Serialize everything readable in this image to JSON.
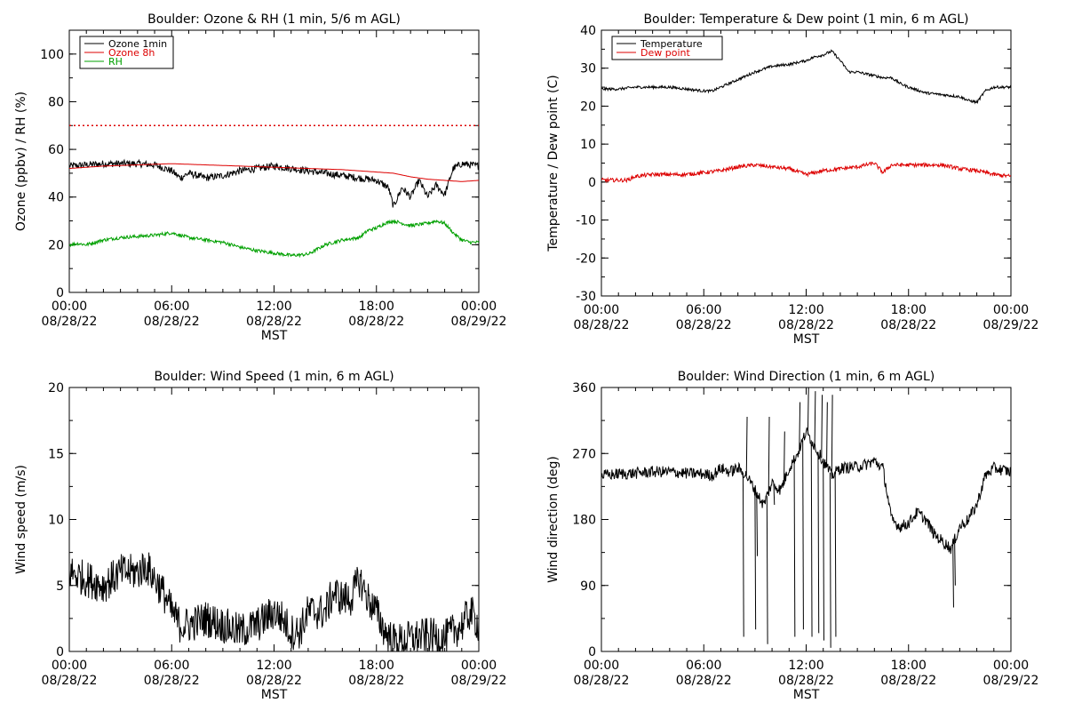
{
  "colors": {
    "black": "#000000",
    "red": "#dd0000",
    "green": "#00a000"
  },
  "chart_data": [
    {
      "id": "ozone",
      "type": "line",
      "title": "Boulder: Ozone & RH (1 min, 5/6 m AGL)",
      "xlabel": "MST",
      "ylabel": "Ozone (ppbv) / RH (%)",
      "x_ticks": [
        {
          "h": 0,
          "time": "00:00",
          "date": "08/28/22"
        },
        {
          "h": 6,
          "time": "06:00",
          "date": "08/28/22"
        },
        {
          "h": 12,
          "time": "12:00",
          "date": "08/28/22"
        },
        {
          "h": 18,
          "time": "18:00",
          "date": "08/28/22"
        },
        {
          "h": 24,
          "time": "00:00",
          "date": "08/29/22"
        }
      ],
      "xlim": [
        0,
        24
      ],
      "ylim": [
        0,
        110
      ],
      "y_ticks": [
        0,
        20,
        40,
        60,
        80,
        100
      ],
      "hline": {
        "y": 70,
        "color": "#dd0000",
        "style": "dotted"
      },
      "legend": {
        "position": "top-left",
        "entries": [
          {
            "label": "Ozone 1min",
            "color": "#000000"
          },
          {
            "label": "Ozone 8h",
            "color": "#dd0000"
          },
          {
            "label": "RH",
            "color": "#00a000"
          }
        ]
      },
      "series": [
        {
          "name": "Ozone 1min",
          "color": "#000000",
          "noise": 1.5,
          "x": [
            0,
            1,
            2,
            3,
            4,
            5,
            6,
            6.5,
            7,
            8,
            9,
            10,
            11,
            12,
            13,
            14,
            15,
            16,
            17,
            18,
            18.7,
            19,
            19.5,
            20,
            20.5,
            21,
            21.5,
            22,
            22.5,
            23,
            24
          ],
          "y": [
            53,
            53.5,
            54,
            54,
            54,
            53.5,
            51,
            48,
            50,
            48,
            49,
            51,
            52,
            53,
            52,
            51,
            50,
            49,
            48,
            47,
            44,
            36,
            44,
            40,
            47,
            40,
            45,
            41,
            52,
            54,
            53
          ]
        },
        {
          "name": "Ozone 8h",
          "color": "#dd0000",
          "noise": 0,
          "x": [
            0,
            2,
            4,
            6,
            8,
            10,
            12,
            14,
            16,
            18,
            19,
            20,
            21,
            22,
            23,
            24
          ],
          "y": [
            52,
            53,
            53.5,
            54,
            53.5,
            53,
            52.5,
            52,
            51.5,
            50.5,
            50,
            48.5,
            47.5,
            47,
            46.5,
            47
          ]
        },
        {
          "name": "RH",
          "color": "#00a000",
          "noise": 0.7,
          "x": [
            0,
            0.5,
            1,
            2,
            3,
            4,
            5,
            5.5,
            6,
            6.5,
            7,
            8,
            9,
            10,
            11,
            12,
            13,
            14,
            15,
            16,
            17,
            17.5,
            18,
            18.5,
            19,
            19.5,
            20,
            21,
            21.5,
            22,
            22.5,
            23,
            23.5,
            24
          ],
          "y": [
            20,
            20.5,
            20,
            22,
            23,
            23.5,
            24,
            24.5,
            25,
            24,
            23,
            22,
            21,
            19,
            17.5,
            16.5,
            15.5,
            16,
            20,
            22,
            23,
            26,
            27,
            29,
            30,
            29,
            28,
            29,
            30,
            29,
            25,
            22,
            21,
            21
          ]
        }
      ]
    },
    {
      "id": "temperature",
      "type": "line",
      "title": "Boulder: Temperature & Dew point (1 min, 6 m AGL)",
      "xlabel": "MST",
      "ylabel": "Temperature / Dew point (C)",
      "x_ticks": [
        {
          "h": 0,
          "time": "00:00",
          "date": "08/28/22"
        },
        {
          "h": 6,
          "time": "06:00",
          "date": "08/28/22"
        },
        {
          "h": 12,
          "time": "12:00",
          "date": "08/28/22"
        },
        {
          "h": 18,
          "time": "18:00",
          "date": "08/28/22"
        },
        {
          "h": 24,
          "time": "00:00",
          "date": "08/29/22"
        }
      ],
      "xlim": [
        0,
        24
      ],
      "ylim": [
        -30,
        40
      ],
      "y_ticks": [
        -30,
        -20,
        -10,
        0,
        10,
        20,
        30,
        40
      ],
      "legend": {
        "position": "top-left",
        "entries": [
          {
            "label": "Temperature",
            "color": "#000000"
          },
          {
            "label": "Dew point",
            "color": "#dd0000"
          }
        ]
      },
      "series": [
        {
          "name": "Temperature",
          "color": "#000000",
          "noise": 0.35,
          "x": [
            0,
            0.5,
            1,
            2,
            3,
            4,
            5,
            6,
            6.5,
            7,
            8,
            9,
            10,
            11,
            12,
            12.5,
            13,
            13.5,
            14,
            14.5,
            15,
            16,
            16.5,
            17,
            17.5,
            18,
            19,
            20,
            21,
            21.5,
            22,
            22.5,
            23,
            24
          ],
          "y": [
            24.5,
            24.5,
            24.5,
            25,
            25,
            25,
            24.5,
            24,
            24,
            25,
            27,
            29,
            30.5,
            31,
            32,
            33,
            33.5,
            34.5,
            32,
            29,
            29,
            28,
            27.5,
            27.5,
            26,
            25,
            23.5,
            23,
            22.5,
            21.5,
            21,
            24,
            25,
            25
          ]
        },
        {
          "name": "Dew point",
          "color": "#dd0000",
          "noise": 0.5,
          "x": [
            0,
            1,
            1.5,
            2,
            3,
            4,
            5,
            6,
            7,
            8,
            9,
            10,
            11,
            12,
            13,
            14,
            15,
            16,
            16.5,
            17,
            18,
            19,
            20,
            21,
            22,
            23,
            24
          ],
          "y": [
            0.5,
            0.5,
            0.5,
            1.5,
            2,
            2,
            2,
            2.5,
            3,
            4,
            4.5,
            4,
            3.5,
            2,
            3,
            3.5,
            4,
            5,
            2.5,
            4.5,
            4.5,
            4.5,
            4.5,
            3.5,
            3,
            2,
            1.5
          ]
        }
      ]
    },
    {
      "id": "wind_speed",
      "type": "line",
      "title": "Boulder: Wind Speed (1 min, 6 m AGL)",
      "xlabel": "MST",
      "ylabel": "Wind speed (m/s)",
      "x_ticks": [
        {
          "h": 0,
          "time": "00:00",
          "date": "08/28/22"
        },
        {
          "h": 6,
          "time": "06:00",
          "date": "08/28/22"
        },
        {
          "h": 12,
          "time": "12:00",
          "date": "08/28/22"
        },
        {
          "h": 18,
          "time": "18:00",
          "date": "08/28/22"
        },
        {
          "h": 24,
          "time": "00:00",
          "date": "08/29/22"
        }
      ],
      "xlim": [
        0,
        24
      ],
      "ylim": [
        0,
        20
      ],
      "y_ticks": [
        0,
        5,
        10,
        15,
        20
      ],
      "series": [
        {
          "name": "",
          "color": "#000000",
          "noise": 1.4,
          "x": [
            0,
            1,
            2,
            3,
            4,
            4.5,
            5,
            5.5,
            6,
            6.5,
            7,
            8,
            9,
            10,
            11,
            12,
            12.5,
            13,
            13.5,
            14,
            15,
            15.5,
            16,
            16.5,
            17,
            17.5,
            18,
            18.5,
            19,
            19.5,
            20,
            21,
            22,
            22.5,
            23,
            23.5,
            24
          ],
          "y": [
            6,
            5.5,
            5,
            6,
            6,
            6.5,
            5.5,
            4.5,
            3,
            2,
            2,
            2.5,
            2,
            1.5,
            2,
            3,
            2.5,
            1.5,
            1.5,
            3,
            3,
            4.5,
            4,
            4,
            5.5,
            4,
            3,
            1.5,
            0.8,
            0.8,
            1,
            1.2,
            1,
            1.5,
            2,
            3,
            2
          ]
        }
      ]
    },
    {
      "id": "wind_direction",
      "type": "line",
      "title": "Boulder: Wind Direction (1 min, 6 m AGL)",
      "xlabel": "MST",
      "ylabel": "Wind direction (deg)",
      "x_ticks": [
        {
          "h": 0,
          "time": "00:00",
          "date": "08/28/22"
        },
        {
          "h": 6,
          "time": "06:00",
          "date": "08/28/22"
        },
        {
          "h": 12,
          "time": "12:00",
          "date": "08/28/22"
        },
        {
          "h": 18,
          "time": "18:00",
          "date": "08/28/22"
        },
        {
          "h": 24,
          "time": "00:00",
          "date": "08/29/22"
        }
      ],
      "xlim": [
        0,
        24
      ],
      "ylim": [
        0,
        360
      ],
      "y_ticks": [
        0,
        90,
        180,
        270,
        360
      ],
      "series": [
        {
          "name": "",
          "color": "#000000",
          "noise": 8,
          "x": [
            0,
            1,
            2,
            3,
            4,
            5,
            6,
            6.5,
            7,
            7.5,
            8,
            8.5,
            9,
            9.5,
            10,
            10.5,
            11,
            11.5,
            12,
            12.5,
            13,
            13.5,
            14,
            15,
            15.5,
            16,
            16.5,
            17,
            17.5,
            18,
            18.5,
            19,
            19.5,
            20,
            20.5,
            21,
            21.5,
            22,
            22.5,
            23,
            24
          ],
          "y": [
            240,
            242,
            243,
            245,
            245,
            243,
            242,
            240,
            250,
            245,
            250,
            240,
            220,
            200,
            230,
            220,
            250,
            270,
            300,
            280,
            260,
            240,
            250,
            252,
            255,
            260,
            250,
            180,
            170,
            175,
            190,
            180,
            160,
            150,
            140,
            170,
            180,
            200,
            240,
            250,
            245
          ]
        }
      ],
      "spikes": [
        {
          "x": 8.3,
          "y": 20
        },
        {
          "x": 8.5,
          "y": 320
        },
        {
          "x": 9.0,
          "y": 30
        },
        {
          "x": 9.1,
          "y": 130
        },
        {
          "x": 9.7,
          "y": 10
        },
        {
          "x": 9.8,
          "y": 320
        },
        {
          "x": 10.1,
          "y": 200
        },
        {
          "x": 10.7,
          "y": 300
        },
        {
          "x": 11.3,
          "y": 20
        },
        {
          "x": 11.6,
          "y": 340
        },
        {
          "x": 11.8,
          "y": 30
        },
        {
          "x": 12.1,
          "y": 360
        },
        {
          "x": 12.3,
          "y": 20
        },
        {
          "x": 12.5,
          "y": 355
        },
        {
          "x": 12.7,
          "y": 25
        },
        {
          "x": 12.9,
          "y": 350
        },
        {
          "x": 13.0,
          "y": 15
        },
        {
          "x": 13.2,
          "y": 340
        },
        {
          "x": 13.4,
          "y": 5
        },
        {
          "x": 13.5,
          "y": 350
        },
        {
          "x": 13.7,
          "y": 20
        },
        {
          "x": 20.6,
          "y": 60
        },
        {
          "x": 20.7,
          "y": 90
        }
      ]
    }
  ]
}
